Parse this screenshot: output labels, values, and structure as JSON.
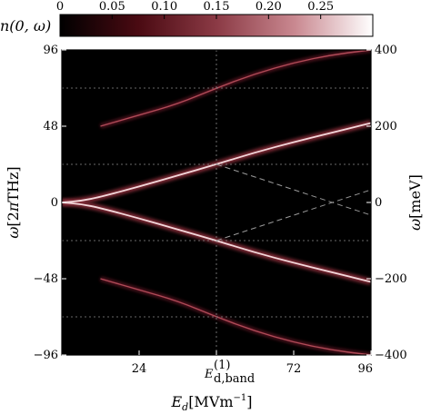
{
  "chart_data": {
    "type": "heatmap",
    "colorbar": {
      "label": "n(0, ω)",
      "ticks": [
        0,
        0.05,
        0.1,
        0.15,
        0.2,
        0.25
      ],
      "tick_labels": [
        "0",
        "0.05",
        "0.10",
        "0.15",
        "0.20",
        "0.25"
      ],
      "range": [
        0,
        0.3
      ],
      "colormap": [
        "#000000",
        "#4a0a12",
        "#8b3a45",
        "#c98890",
        "#ffffff"
      ]
    },
    "x_axis": {
      "label": "E_d [MVm^-1]",
      "range": [
        0,
        96
      ],
      "ticks": [
        24,
        48,
        72,
        96
      ],
      "tick_labels": [
        "24",
        "E_d,band^(1)",
        "72",
        "96"
      ]
    },
    "y_left": {
      "label": "ω [2πTHz]",
      "range": [
        -96,
        96
      ],
      "ticks": [
        96,
        48,
        0,
        -48,
        -96
      ],
      "tick_labels": [
        "96",
        "48",
        "0",
        "−48",
        "−96"
      ]
    },
    "y_right": {
      "label": "ω [meV]",
      "range": [
        -400,
        400
      ],
      "ticks": [
        400,
        200,
        0,
        -200,
        -400
      ],
      "tick_labels": [
        "400",
        "200",
        "0",
        "−200",
        "−400"
      ]
    },
    "guide_lines": {
      "vertical_x": [
        48
      ],
      "horizontal_y": [
        72,
        24,
        -24,
        -72
      ]
    },
    "dashed_lines": [
      {
        "x": [
          48,
          96
        ],
        "y": [
          24,
          -8
        ]
      },
      {
        "x": [
          48,
          96
        ],
        "y": [
          -24,
          8
        ]
      }
    ],
    "series": [
      {
        "x": [
          0,
          6,
          12,
          24,
          36,
          48,
          60,
          72,
          84,
          96
        ],
        "y": [
          0,
          1,
          3.5,
          10,
          17,
          24,
          31.5,
          38,
          44,
          50
        ],
        "intensity": 0.3
      },
      {
        "x": [
          0,
          6,
          12,
          24,
          36,
          48,
          60,
          72,
          84,
          96
        ],
        "y": [
          0,
          -1,
          -3.5,
          -10,
          -17,
          -24,
          -31.5,
          -38,
          -44,
          -50
        ],
        "intensity": 0.3
      },
      {
        "x": [
          12,
          24,
          36,
          48,
          60,
          72,
          84,
          96
        ],
        "y": [
          48,
          55,
          62,
          72,
          81,
          88,
          93,
          96
        ],
        "intensity": 0.14
      },
      {
        "x": [
          12,
          24,
          36,
          48,
          60,
          72,
          84,
          96
        ],
        "y": [
          -48,
          -55,
          -62,
          -72,
          -81,
          -88,
          -93,
          -96
        ],
        "intensity": 0.14
      }
    ]
  }
}
